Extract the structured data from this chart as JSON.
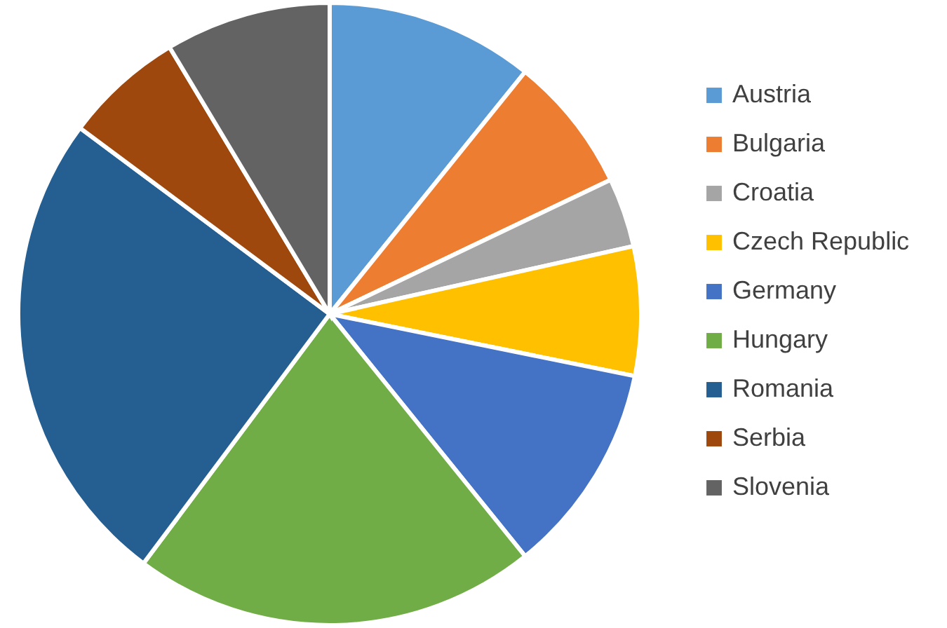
{
  "chart_data": {
    "type": "pie",
    "categories": [
      "Austria",
      "Bulgaria",
      "Croatia",
      "Czech Republic",
      "Germany",
      "Hungary",
      "Romania",
      "Serbia",
      "Slovenia"
    ],
    "values": [
      10.8,
      7.1,
      3.6,
      6.7,
      11.0,
      21.0,
      25.0,
      6.2,
      8.6
    ],
    "colors": [
      "#5b9bd5",
      "#ed7d31",
      "#a5a5a5",
      "#ffc000",
      "#4472c4",
      "#70ad47",
      "#255e91",
      "#9e480e",
      "#636363"
    ],
    "legend": "right"
  }
}
